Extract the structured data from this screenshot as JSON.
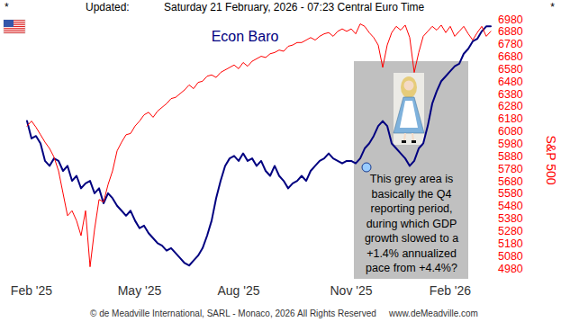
{
  "chart_data": {
    "type": "line",
    "title": "Econ Baro",
    "header": [
      "*",
      "Updated:",
      "Saturday 21 February, 2026 - 07:23 Central Euro Time",
      "*"
    ],
    "footer": [
      "© de Meadville International, SARL - Monaco, 2026",
      "All Rights Reserved",
      "www.deMeadville.com"
    ],
    "annotation": [
      "This grey area is",
      "basically the Q4",
      "reporting period,",
      "during which GDP",
      "growth slowed to a",
      "+1.4% annualized",
      "pace from +4.4%?"
    ],
    "y_label": "S&P 500",
    "categories": [
      null,
      "Feb '25",
      null,
      null,
      null,
      null,
      null,
      null,
      null,
      null,
      null,
      null,
      null,
      null,
      null,
      null,
      null,
      null,
      null,
      null,
      null,
      null,
      null,
      null,
      null,
      "May '25",
      null,
      null,
      null,
      null,
      null,
      null,
      null,
      null,
      null,
      null,
      null,
      null,
      null,
      null,
      null,
      null,
      null,
      null,
      null,
      null,
      null,
      "Aug '25",
      null,
      null,
      null,
      null,
      null,
      null,
      null,
      null,
      null,
      null,
      null,
      null,
      null,
      null,
      null,
      null,
      null,
      null,
      null,
      null,
      null,
      null,
      null,
      null,
      "Nov '25",
      null,
      null,
      null,
      null,
      null,
      null,
      null,
      null,
      null,
      null,
      null,
      null,
      null,
      null,
      null,
      null,
      null,
      null,
      null,
      null,
      null,
      "Feb '26",
      null,
      null,
      null,
      null,
      null,
      null,
      null,
      null,
      null
    ],
    "ylim": [
      4980,
      6980
    ],
    "yticks": [
      4980,
      5080,
      5180,
      5280,
      5380,
      5480,
      5580,
      5680,
      5780,
      5880,
      5980,
      6080,
      6180,
      6280,
      6380,
      6480,
      6580,
      6680,
      6780,
      6880,
      6980
    ],
    "y2lim": [
      0,
      100
    ],
    "series": [
      {
        "color": "#000080",
        "axis": "y2",
        "values": [
          59,
          52,
          53,
          50,
          43,
          41,
          44,
          43,
          39,
          41,
          35,
          37,
          32,
          34,
          35,
          30,
          32,
          26,
          30,
          28,
          25,
          23,
          21,
          23,
          19,
          16,
          17,
          14,
          12,
          10,
          9,
          7,
          8,
          6,
          4,
          2,
          1,
          3,
          5,
          8,
          13,
          19,
          28,
          35,
          41,
          44,
          45,
          43,
          46,
          43,
          44,
          41,
          43,
          39,
          37,
          41,
          37,
          35,
          32,
          34,
          35,
          37,
          35,
          39,
          41,
          43,
          44,
          46,
          44,
          43,
          42,
          43,
          43,
          42,
          44,
          48,
          50,
          53,
          57,
          59,
          57,
          50,
          48,
          46,
          44,
          41,
          43,
          48,
          50,
          57,
          66,
          71,
          75,
          77,
          79,
          81,
          82,
          86,
          88,
          91,
          92,
          95,
          97,
          97
        ]
      },
      {
        "color": "#ff0000",
        "values": [
          6120,
          6160,
          6110,
          6050,
          5990,
          5940,
          5870,
          5760,
          5580,
          5400,
          5440,
          5360,
          5240,
          5440,
          4990,
          5290,
          5530,
          5510,
          5650,
          5760,
          5920,
          5990,
          6050,
          6060,
          6120,
          6160,
          6210,
          6230,
          6190,
          6240,
          6270,
          6300,
          6340,
          6350,
          6380,
          6410,
          6450,
          6420,
          6470,
          6480,
          6520,
          6530,
          6510,
          6550,
          6570,
          6590,
          6610,
          6580,
          6630,
          6600,
          6640,
          6660,
          6680,
          6670,
          6700,
          6710,
          6730,
          6720,
          6760,
          6770,
          6790,
          6790,
          6810,
          6830,
          6810,
          6840,
          6860,
          6870,
          6840,
          6880,
          6900,
          6880,
          6900,
          6860,
          6940,
          6920,
          6870,
          6830,
          6770,
          6590,
          6770,
          6870,
          6920,
          6890,
          6930,
          6830,
          6550,
          6710,
          6840,
          6880,
          6920,
          6890,
          6930,
          6870,
          6920,
          6840,
          6880,
          6920,
          6860,
          6810,
          6870,
          6920,
          6840,
          6880
        ]
      }
    ]
  }
}
